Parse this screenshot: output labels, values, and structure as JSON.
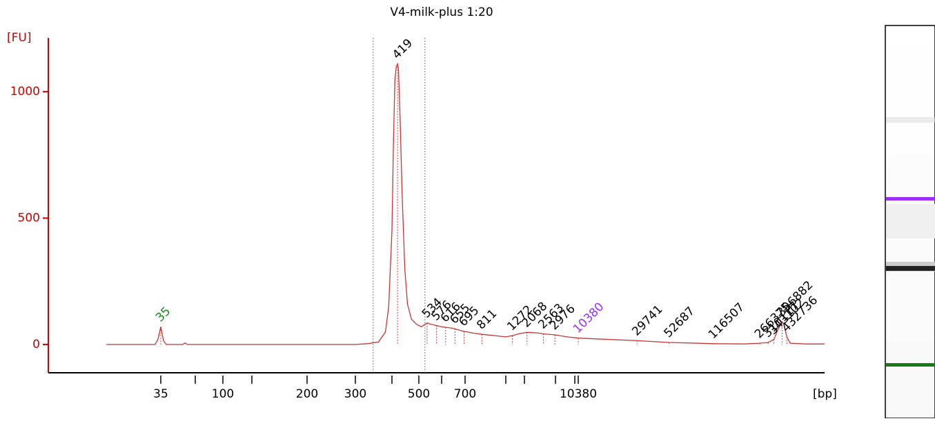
{
  "chart_data": {
    "type": "line",
    "title": "V4-milk-plus 1:20",
    "y_label": "[FU]",
    "x_label": "[bp]",
    "color": "#cc3333",
    "axis_color": "#cc0000",
    "xlim": [
      11,
      850000
    ],
    "ylim": [
      -112,
      1213
    ],
    "xticks": [
      35,
      {
        "value": 50,
        "label": null
      },
      100,
      {
        "value": 150,
        "label": null
      },
      200,
      300,
      {
        "value": 400,
        "label": null
      },
      500,
      {
        "value": 600,
        "label": null
      },
      700,
      {
        "value": 1000,
        "label": null
      },
      {
        "value": 2000,
        "label": null
      },
      {
        "value": 3000,
        "label": null
      },
      {
        "value": 7000,
        "label": null
      },
      10380
    ],
    "yticks": [
      0,
      500,
      1000
    ],
    "region_bounds": [
      345,
      525
    ],
    "x": [
      20,
      33,
      34,
      35,
      36,
      37,
      44,
      45,
      46,
      300,
      330,
      360,
      380,
      390,
      400,
      405,
      410,
      415,
      419,
      422,
      428,
      435,
      445,
      455,
      470,
      490,
      510,
      534,
      550,
      576,
      600,
      616,
      640,
      655,
      680,
      695,
      750,
      811,
      1000,
      1272,
      1600,
      2068,
      2400,
      2563,
      2976,
      5000,
      10380,
      29741,
      52687,
      116507,
      200000,
      266375,
      310117,
      343102,
      370000,
      396882,
      410000,
      432736,
      460000,
      600000,
      850000
    ],
    "values": [
      0,
      0,
      20,
      70,
      15,
      0,
      0,
      6,
      0,
      0,
      3,
      10,
      50,
      150,
      450,
      800,
      1050,
      1100,
      1110,
      1090,
      900,
      600,
      300,
      160,
      100,
      80,
      70,
      85,
      80,
      75,
      70,
      68,
      65,
      62,
      55,
      52,
      45,
      40,
      30,
      35,
      42,
      48,
      45,
      42,
      38,
      30,
      25,
      15,
      8,
      3,
      2,
      5,
      8,
      20,
      60,
      90,
      80,
      30,
      5,
      2,
      2
    ],
    "peak_labels": [
      {
        "value": 35,
        "color": "#1a8a1a"
      },
      {
        "value": 419,
        "color": "#000000"
      },
      {
        "value": 534,
        "color": "#000000"
      },
      {
        "value": 576,
        "color": "#000000"
      },
      {
        "value": 616,
        "color": "#000000"
      },
      {
        "value": 655,
        "color": "#000000"
      },
      {
        "value": 695,
        "color": "#000000"
      },
      {
        "value": 811,
        "color": "#000000"
      },
      {
        "value": 1272,
        "color": "#000000"
      },
      {
        "value": 2068,
        "color": "#000000"
      },
      {
        "value": 2563,
        "color": "#000000"
      },
      {
        "value": 2976,
        "color": "#000000"
      },
      {
        "value": 10380,
        "color": "#9b30ff"
      },
      {
        "value": 29741,
        "color": "#000000"
      },
      {
        "value": 52687,
        "color": "#000000"
      },
      {
        "value": 116507,
        "color": "#000000"
      },
      {
        "value": 266375,
        "color": "#000000"
      },
      {
        "value": 310117,
        "color": "#000000"
      },
      {
        "value": 343102,
        "color": "#000000"
      },
      {
        "value": 396882,
        "color": "#000000"
      },
      {
        "value": 432736,
        "color": "#000000"
      }
    ]
  }
}
